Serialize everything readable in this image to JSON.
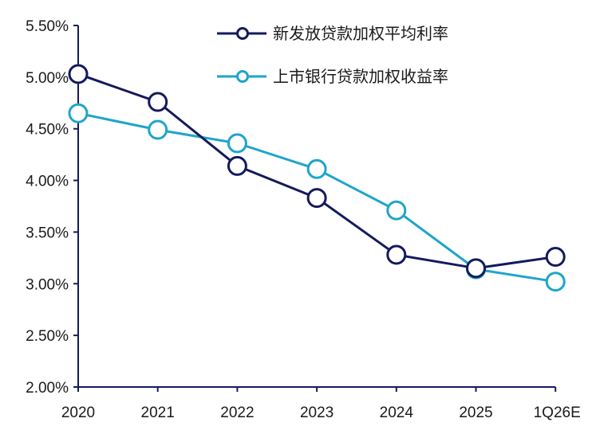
{
  "chart_data": {
    "type": "line",
    "title": "",
    "xlabel": "",
    "ylabel": "",
    "categories": [
      "2020",
      "2021",
      "2022",
      "2023",
      "2024",
      "2025",
      "1Q26E"
    ],
    "ylim": [
      0.02,
      0.055
    ],
    "ytick_labels": [
      "2.00%",
      "2.50%",
      "3.00%",
      "3.50%",
      "4.00%",
      "4.50%",
      "5.00%",
      "5.50%"
    ],
    "ytick_values": [
      0.02,
      0.025,
      0.03,
      0.035,
      0.04,
      0.045,
      0.05,
      0.055
    ],
    "grid": false,
    "legend_position": "top-right",
    "series": [
      {
        "name": "新发放贷款加权平均利率",
        "color": "#141a5c",
        "values": [
          0.0503,
          0.0476,
          0.0414,
          0.0383,
          0.0328,
          0.0315,
          0.0326
        ]
      },
      {
        "name": "上市银行贷款加权收益率",
        "color": "#1ea5c9",
        "values": [
          0.0465,
          0.0449,
          0.0436,
          0.0411,
          0.0371,
          0.0314,
          0.0302
        ]
      }
    ]
  }
}
